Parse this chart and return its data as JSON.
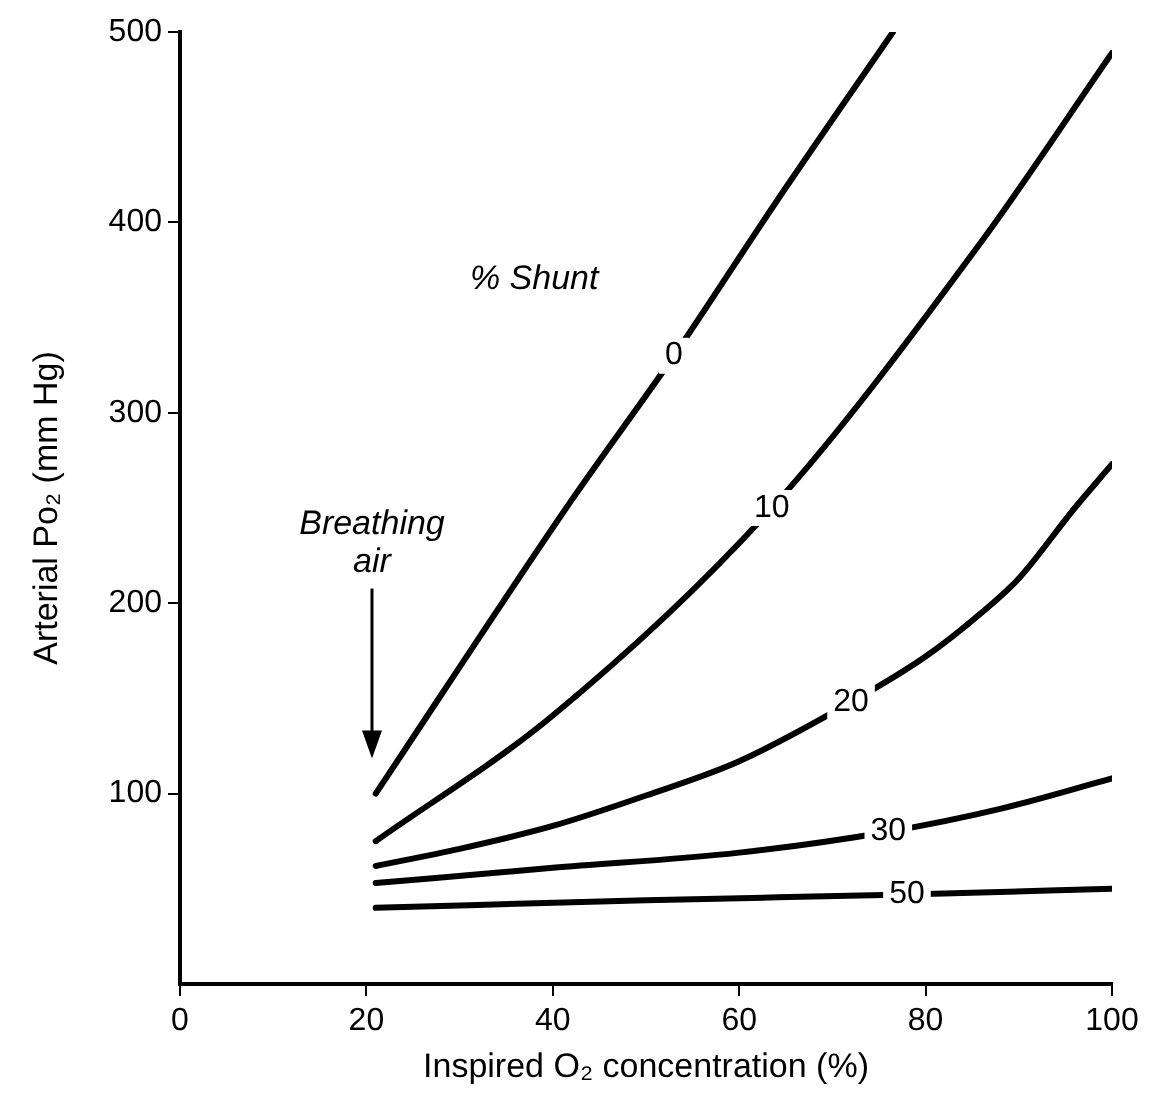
{
  "chart_data": {
    "type": "line",
    "xlabel": "Inspired O₂ concentration (%)",
    "ylabel": "Arterial Po₂ (mm Hg)",
    "legend_title": "% Shunt",
    "xlim": [
      0,
      100
    ],
    "xticks": [
      0,
      20,
      40,
      60,
      80,
      100
    ],
    "ylim": [
      0,
      500
    ],
    "yticks": [
      100,
      200,
      300,
      400,
      500
    ],
    "grid": false,
    "legend": false,
    "marker": "none",
    "line_style": "solid",
    "annotations": [
      "Breathing air"
    ],
    "series": [
      {
        "name": "0",
        "color": "#000000",
        "x": [
          21,
          42,
          53,
          64,
          76.5
        ],
        "values": [
          100,
          254,
          330,
          411,
          500
        ]
      },
      {
        "name": "10",
        "color": "#000000",
        "x": [
          21,
          40,
          63.5,
          86,
          100
        ],
        "values": [
          75,
          141,
          250,
          390,
          489
        ]
      },
      {
        "name": "20",
        "color": "#000000",
        "x": [
          21,
          30,
          40,
          50,
          60,
          72,
          80,
          86,
          90,
          96,
          100
        ],
        "values": [
          62,
          71,
          83,
          99,
          117,
          148,
          172,
          195,
          213,
          250,
          273
        ]
      },
      {
        "name": "30",
        "color": "#000000",
        "x": [
          21,
          40,
          60,
          76,
          88,
          100
        ],
        "values": [
          53,
          61,
          69,
          80,
          92,
          108
        ]
      },
      {
        "name": "50",
        "color": "#000000",
        "x": [
          21,
          50,
          78,
          100
        ],
        "values": [
          40,
          44,
          47,
          50
        ]
      }
    ]
  }
}
